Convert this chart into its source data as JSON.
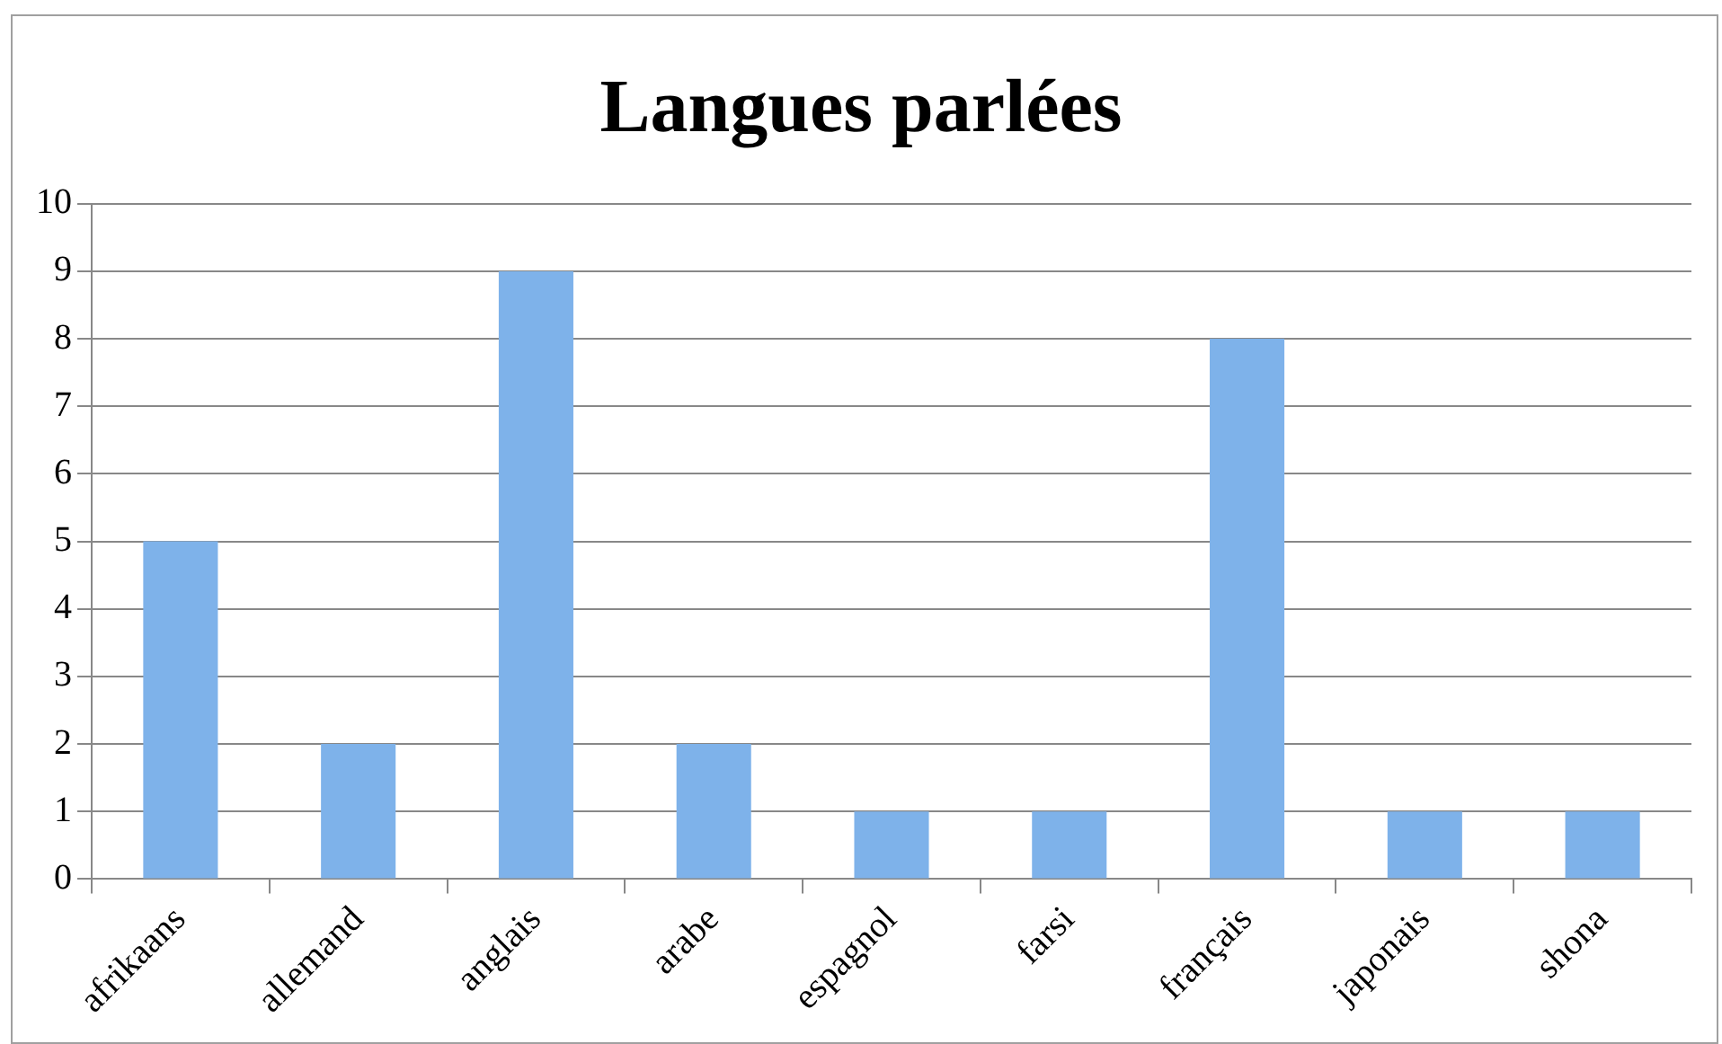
{
  "chart_data": {
    "type": "bar",
    "title": "Langues parlées",
    "categories": [
      "afrikaans",
      "allemand",
      "anglais",
      "arabe",
      "espagnol",
      "farsi",
      "français",
      "japonais",
      "shona"
    ],
    "values": [
      5,
      2,
      9,
      2,
      1,
      1,
      8,
      1,
      1
    ],
    "color": "#7eb2ea",
    "ylim": [
      0,
      10
    ],
    "yticks": [
      0,
      1,
      2,
      3,
      4,
      5,
      6,
      7,
      8,
      9,
      10
    ],
    "grid": "y",
    "legend": false
  }
}
